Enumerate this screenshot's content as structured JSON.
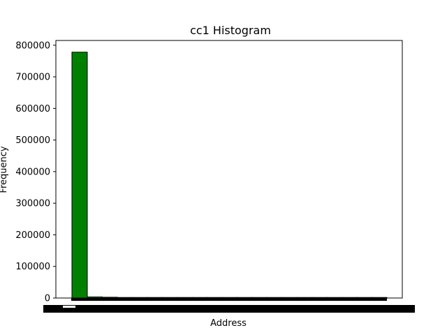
{
  "chart_data": {
    "type": "bar",
    "title": "cc1 Histogram",
    "xlabel": "Address",
    "ylabel": "Frequency",
    "ylim": [
      0,
      815000
    ],
    "yticks": [
      0,
      100000,
      200000,
      300000,
      400000,
      500000,
      600000,
      700000,
      800000
    ],
    "yticklabels": [
      "0",
      "100000",
      "200000",
      "300000",
      "400000",
      "500000",
      "600000",
      "700000",
      "800000"
    ],
    "series": [
      {
        "name": "cc1",
        "bins": [
          {
            "bin": 0,
            "value": 778000
          },
          {
            "bin": 1,
            "value": 3500
          },
          {
            "bin": 2,
            "value": 2500
          },
          {
            "bin": 3,
            "value": 1500
          },
          {
            "bin": 4,
            "value": 1200
          },
          {
            "bin": 5,
            "value": 1000
          },
          {
            "bin": 6,
            "value": 800
          },
          {
            "bin": 7,
            "value": 600
          },
          {
            "bin": 8,
            "value": 500
          },
          {
            "bin": 9,
            "value": 500
          },
          {
            "bin": 10,
            "value": 400
          },
          {
            "bin": 11,
            "value": 400
          },
          {
            "bin": 12,
            "value": 300
          },
          {
            "bin": 13,
            "value": 300
          },
          {
            "bin": 14,
            "value": 300
          },
          {
            "bin": 15,
            "value": 200
          },
          {
            "bin": 16,
            "value": 200
          },
          {
            "bin": 17,
            "value": 200
          },
          {
            "bin": 18,
            "value": 200
          },
          {
            "bin": 19,
            "value": 200
          },
          {
            "bin": 20,
            "value": 200
          }
        ]
      }
    ],
    "bar_color": "#008000",
    "edge_color": "#000000",
    "grid": false,
    "xticklabels_legible": false
  }
}
